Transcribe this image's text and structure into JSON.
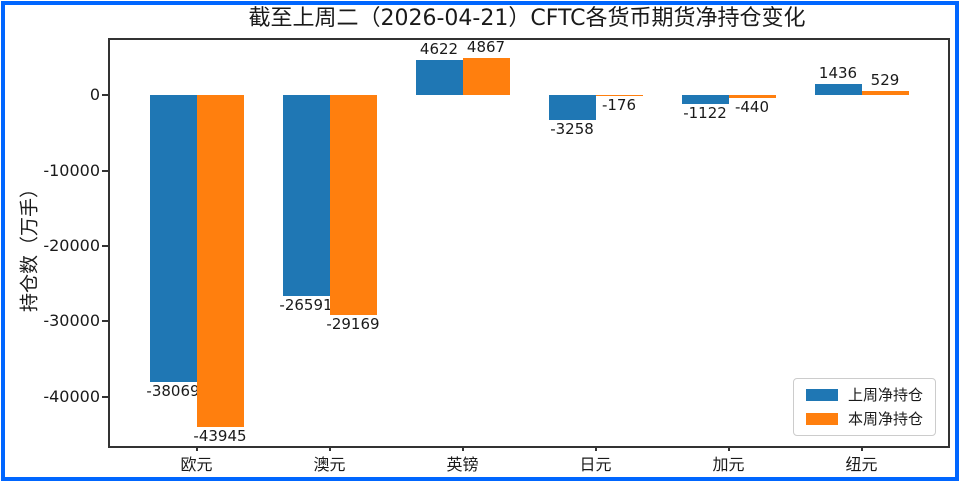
{
  "figure": {
    "frame_color": "#0066ff",
    "background": "#ffffff",
    "text_color": "#1a1a1a"
  },
  "chart_data": {
    "type": "bar",
    "title": "截至上周二（2026-04-21）CFTC各货币期货净持仓变化",
    "xlabel": "",
    "ylabel": "持仓数（万手）",
    "categories": [
      "欧元",
      "澳元",
      "英镑",
      "日元",
      "加元",
      "纽元"
    ],
    "series": [
      {
        "name": "上周净持仓",
        "color": "#1f77b4",
        "values": [
          -38069,
          -26591,
          4622,
          -3258,
          -1122,
          1436
        ]
      },
      {
        "name": "本周净持仓",
        "color": "#ff7f0e",
        "values": [
          -43945,
          -29169,
          4867,
          -176,
          -440,
          529
        ]
      }
    ],
    "yticks": [
      0,
      -10000,
      -20000,
      -30000,
      -40000
    ],
    "ylim": [
      -46500,
      7300
    ],
    "grid": false,
    "legend_position": "lower right",
    "bar_value_labels": true
  }
}
